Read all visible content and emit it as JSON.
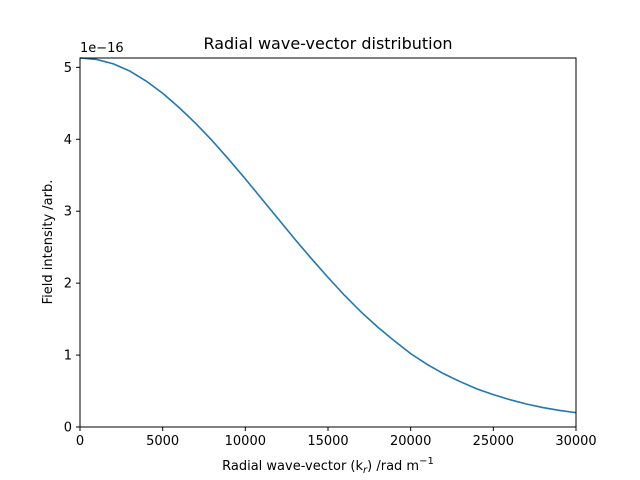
{
  "chart_data": {
    "type": "line",
    "title": "Radial wave-vector distribution",
    "xlabel": "Radial wave-vector (k",
    "xlabel_sub": "r",
    "xlabel_unit": ") /rad m",
    "xlabel_sup": "−1",
    "ylabel": "Field intensity /arb.",
    "y_offset_text": "1e−16",
    "xlim": [
      0,
      30000
    ],
    "ylim": [
      0,
      5.13
    ],
    "x_ticks": [
      0,
      5000,
      10000,
      15000,
      20000,
      25000,
      30000
    ],
    "x_tick_labels": [
      "0",
      "5000",
      "10000",
      "15000",
      "20000",
      "25000",
      "30000"
    ],
    "y_ticks": [
      0,
      1,
      2,
      3,
      4,
      5
    ],
    "y_tick_labels": [
      "0",
      "1",
      "2",
      "3",
      "4",
      "5"
    ],
    "grid": false,
    "series": [
      {
        "color": "#1f77b4",
        "x": [
          0,
          1000,
          2000,
          3000,
          4000,
          5000,
          6000,
          7000,
          8000,
          9000,
          10000,
          11000,
          12000,
          13000,
          14000,
          15000,
          16000,
          17000,
          18000,
          19000,
          20000,
          21000,
          22000,
          23000,
          24000,
          25000,
          26000,
          27000,
          28000,
          29000,
          30000
        ],
        "y": [
          5.13,
          5.11,
          5.05,
          4.95,
          4.81,
          4.64,
          4.44,
          4.22,
          3.98,
          3.72,
          3.45,
          3.17,
          2.89,
          2.61,
          2.34,
          2.08,
          1.83,
          1.6,
          1.39,
          1.2,
          1.02,
          0.87,
          0.74,
          0.63,
          0.53,
          0.45,
          0.38,
          0.32,
          0.27,
          0.23,
          0.2
        ]
      }
    ]
  }
}
